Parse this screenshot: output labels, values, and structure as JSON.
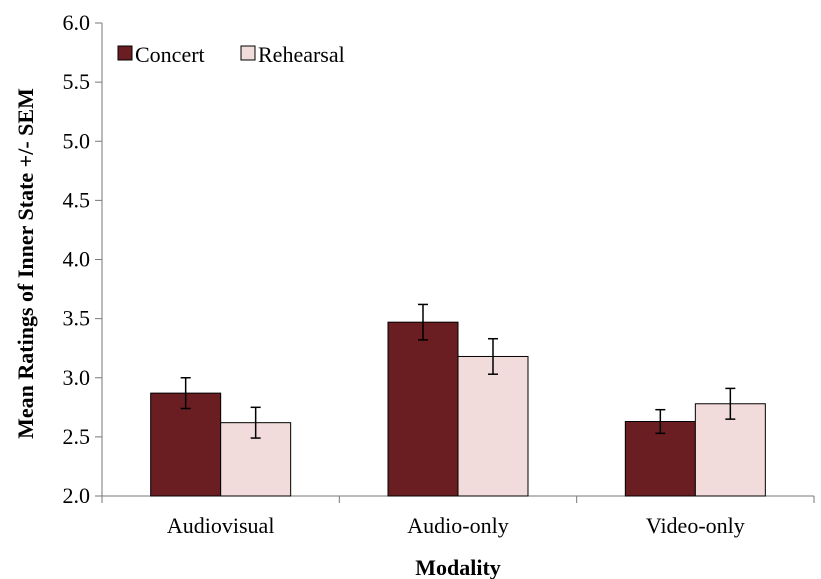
{
  "chart_data": {
    "type": "bar",
    "title": "",
    "xlabel": "Modality",
    "ylabel": "Mean Ratings of Inner State +/- SEM",
    "ylim": [
      2.0,
      6.0
    ],
    "yticks": [
      "2.0",
      "2.5",
      "3.0",
      "3.5",
      "4.0",
      "4.5",
      "5.0",
      "5.5",
      "6.0"
    ],
    "ytick_values": [
      2.0,
      2.5,
      3.0,
      3.5,
      4.0,
      4.5,
      5.0,
      5.5,
      6.0
    ],
    "categories": [
      "Audiovisual",
      "Audio-only",
      "Video-only"
    ],
    "series": [
      {
        "name": "Concert",
        "color": "#6b1e22",
        "values": [
          2.87,
          3.47,
          2.63
        ],
        "errors": [
          0.13,
          0.15,
          0.1
        ]
      },
      {
        "name": "Rehearsal",
        "color": "#f2dcdb",
        "values": [
          2.62,
          3.18,
          2.78
        ],
        "errors": [
          0.13,
          0.15,
          0.13
        ]
      }
    ],
    "grid": false,
    "legend_position": "top-left"
  }
}
